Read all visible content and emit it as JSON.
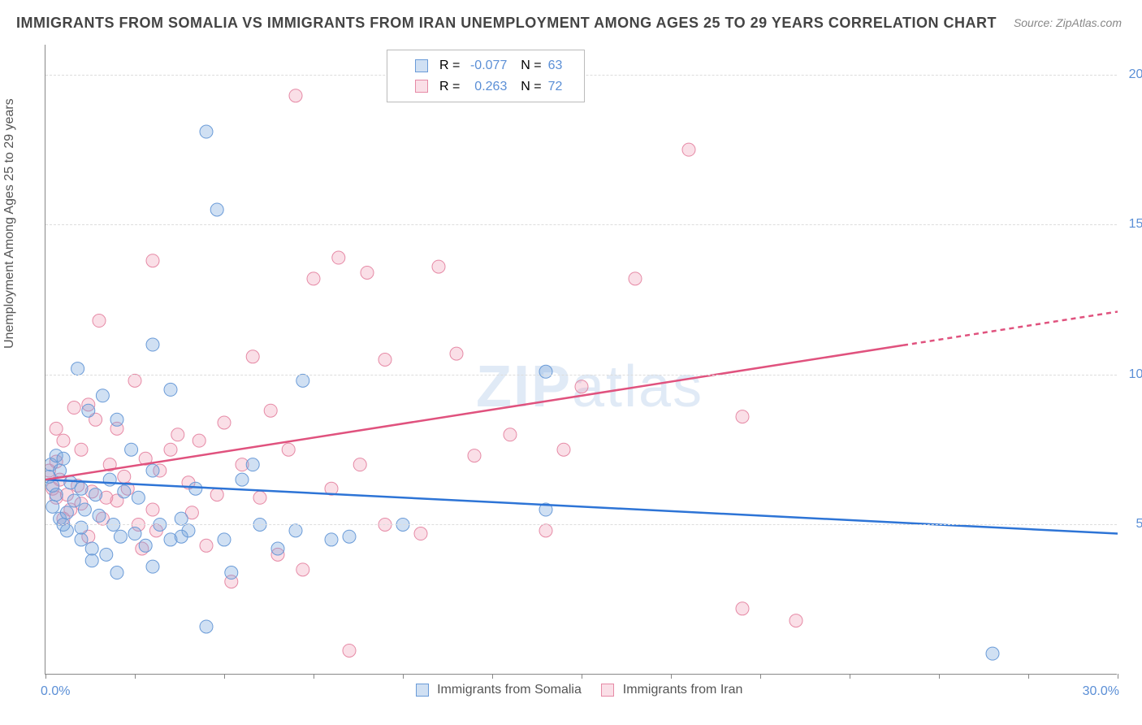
{
  "title": "IMMIGRANTS FROM SOMALIA VS IMMIGRANTS FROM IRAN UNEMPLOYMENT AMONG AGES 25 TO 29 YEARS CORRELATION CHART",
  "source": "Source: ZipAtlas.com",
  "y_axis_label": "Unemployment Among Ages 25 to 29 years",
  "watermark": "ZIPatlas",
  "colors": {
    "series_a_fill": "rgba(120,165,220,0.35)",
    "series_a_stroke": "#6a9bd8",
    "series_b_fill": "rgba(240,150,175,0.3)",
    "series_b_stroke": "#e68aa6",
    "line_a": "#2d74d6",
    "line_b": "#e0527e",
    "tick_label": "#5b8fd6",
    "grid": "#dddddd",
    "axis": "#888888"
  },
  "x_range": [
    0,
    30
  ],
  "y_range": [
    0,
    21
  ],
  "y_ticks": [
    5.0,
    10.0,
    15.0,
    20.0
  ],
  "x_ticks_minor": [
    0,
    2.5,
    5,
    7.5,
    10,
    12.5,
    15,
    17.5,
    20,
    22.5,
    25,
    27.5,
    30
  ],
  "x_label_min": "0.0%",
  "x_label_max": "30.0%",
  "series_a": {
    "name": "Immigrants from Somalia",
    "R": "-0.077",
    "N": "63",
    "points": [
      [
        0.1,
        6.6
      ],
      [
        0.15,
        7.0
      ],
      [
        0.2,
        6.3
      ],
      [
        0.2,
        5.6
      ],
      [
        0.3,
        7.3
      ],
      [
        0.3,
        6.0
      ],
      [
        0.4,
        5.2
      ],
      [
        0.4,
        6.8
      ],
      [
        0.5,
        5.0
      ],
      [
        0.5,
        7.2
      ],
      [
        0.6,
        4.8
      ],
      [
        0.7,
        6.4
      ],
      [
        0.8,
        5.8
      ],
      [
        0.9,
        10.2
      ],
      [
        1.0,
        6.2
      ],
      [
        1.0,
        4.5
      ],
      [
        1.1,
        5.5
      ],
      [
        1.2,
        8.8
      ],
      [
        1.3,
        4.2
      ],
      [
        1.4,
        6.0
      ],
      [
        1.5,
        5.3
      ],
      [
        1.6,
        9.3
      ],
      [
        1.7,
        4.0
      ],
      [
        1.8,
        6.5
      ],
      [
        1.9,
        5.0
      ],
      [
        2.0,
        8.5
      ],
      [
        2.1,
        4.6
      ],
      [
        2.2,
        6.1
      ],
      [
        2.5,
        4.7
      ],
      [
        2.6,
        5.9
      ],
      [
        2.8,
        4.3
      ],
      [
        3.0,
        6.8
      ],
      [
        3.0,
        11.0
      ],
      [
        3.2,
        5.0
      ],
      [
        3.5,
        4.5
      ],
      [
        3.5,
        9.5
      ],
      [
        3.8,
        5.2
      ],
      [
        4.0,
        4.8
      ],
      [
        4.2,
        6.2
      ],
      [
        4.5,
        18.1
      ],
      [
        4.5,
        1.6
      ],
      [
        4.8,
        15.5
      ],
      [
        5.0,
        4.5
      ],
      [
        5.2,
        3.4
      ],
      [
        5.5,
        6.5
      ],
      [
        5.8,
        7.0
      ],
      [
        6.0,
        5.0
      ],
      [
        6.5,
        4.2
      ],
      [
        7.0,
        4.8
      ],
      [
        7.2,
        9.8
      ],
      [
        8.0,
        4.5
      ],
      [
        8.5,
        4.6
      ],
      [
        10.0,
        5.0
      ],
      [
        14.0,
        5.5
      ],
      [
        14.0,
        10.1
      ],
      [
        26.5,
        0.7
      ],
      [
        2.0,
        3.4
      ],
      [
        1.3,
        3.8
      ],
      [
        3.0,
        3.6
      ],
      [
        3.8,
        4.6
      ],
      [
        1.0,
        4.9
      ],
      [
        0.6,
        5.4
      ],
      [
        2.4,
        7.5
      ]
    ],
    "trend": {
      "y_at_xmin": 6.5,
      "y_at_xmax": 4.7
    }
  },
  "series_b": {
    "name": "Immigrants from Iran",
    "R": "0.263",
    "N": "72",
    "points": [
      [
        0.1,
        6.8
      ],
      [
        0.2,
        6.2
      ],
      [
        0.3,
        7.1
      ],
      [
        0.3,
        5.9
      ],
      [
        0.4,
        6.5
      ],
      [
        0.5,
        7.8
      ],
      [
        0.6,
        6.0
      ],
      [
        0.7,
        5.5
      ],
      [
        0.8,
        8.9
      ],
      [
        0.9,
        6.3
      ],
      [
        1.0,
        7.5
      ],
      [
        1.0,
        5.7
      ],
      [
        1.2,
        9.0
      ],
      [
        1.3,
        6.1
      ],
      [
        1.5,
        11.8
      ],
      [
        1.6,
        5.2
      ],
      [
        1.8,
        7.0
      ],
      [
        2.0,
        8.2
      ],
      [
        2.0,
        5.8
      ],
      [
        2.2,
        6.6
      ],
      [
        2.5,
        9.8
      ],
      [
        2.6,
        5.0
      ],
      [
        2.8,
        7.2
      ],
      [
        3.0,
        13.8
      ],
      [
        3.0,
        5.5
      ],
      [
        3.2,
        6.8
      ],
      [
        3.5,
        7.5
      ],
      [
        3.7,
        8.0
      ],
      [
        4.0,
        6.4
      ],
      [
        4.3,
        7.8
      ],
      [
        4.5,
        4.3
      ],
      [
        4.8,
        6.0
      ],
      [
        5.0,
        8.4
      ],
      [
        5.2,
        3.1
      ],
      [
        5.5,
        7.0
      ],
      [
        5.8,
        10.6
      ],
      [
        6.0,
        5.9
      ],
      [
        6.3,
        8.8
      ],
      [
        6.5,
        4.0
      ],
      [
        6.8,
        7.5
      ],
      [
        7.0,
        19.3
      ],
      [
        7.2,
        3.5
      ],
      [
        7.5,
        13.2
      ],
      [
        8.0,
        6.2
      ],
      [
        8.2,
        13.9
      ],
      [
        8.5,
        0.8
      ],
      [
        8.8,
        7.0
      ],
      [
        9.0,
        13.4
      ],
      [
        9.5,
        5.0
      ],
      [
        9.5,
        10.5
      ],
      [
        10.5,
        4.7
      ],
      [
        11.0,
        13.6
      ],
      [
        11.5,
        10.7
      ],
      [
        12.0,
        7.3
      ],
      [
        13.0,
        8.0
      ],
      [
        14.0,
        4.8
      ],
      [
        14.5,
        7.5
      ],
      [
        15.0,
        9.6
      ],
      [
        16.5,
        13.2
      ],
      [
        18.0,
        17.5
      ],
      [
        19.5,
        8.6
      ],
      [
        19.5,
        2.2
      ],
      [
        21.0,
        1.8
      ],
      [
        0.5,
        5.2
      ],
      [
        1.2,
        4.6
      ],
      [
        2.3,
        6.2
      ],
      [
        3.1,
        4.8
      ],
      [
        4.1,
        5.4
      ],
      [
        1.4,
        8.5
      ],
      [
        2.7,
        4.2
      ],
      [
        0.3,
        8.2
      ],
      [
        1.7,
        5.9
      ]
    ],
    "trend": {
      "y_at_xmin": 6.5,
      "y_at_xmax": 12.1,
      "solid_until_x": 24
    }
  },
  "marker_radius": 8
}
